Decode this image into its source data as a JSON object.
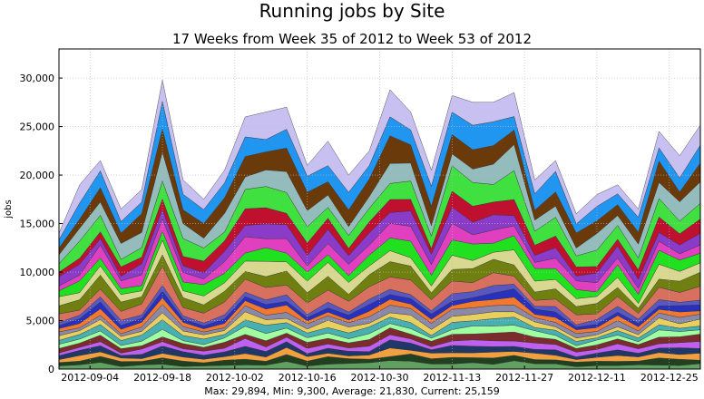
{
  "chart_data": {
    "type": "area",
    "stacked": true,
    "title": "Running jobs by Site",
    "subtitle": "17 Weeks from Week 35 of 2012 to Week 53 of 2012",
    "ylabel": "jobs",
    "xlabel": "",
    "ylim": [
      0,
      33000
    ],
    "xlim": [
      "2012-08-29",
      "2012-12-31"
    ],
    "yticks": [
      0,
      5000,
      10000,
      15000,
      20000,
      25000,
      30000
    ],
    "ytick_labels": [
      "0",
      "5,000",
      "10,000",
      "15,000",
      "20,000",
      "25,000",
      "30,000"
    ],
    "xticks": [
      "2012-09-04",
      "2012-09-18",
      "2012-10-02",
      "2012-10-16",
      "2012-10-30",
      "2012-11-13",
      "2012-11-27",
      "2012-12-11",
      "2012-12-25"
    ],
    "grid": true,
    "legend": "none",
    "footer": "Max: 29,894, Min: 9,300, Average: 21,830, Current: 25,159",
    "total_series": {
      "dates": [
        "2012-08-29",
        "2012-09-02",
        "2012-09-06",
        "2012-09-10",
        "2012-09-14",
        "2012-09-18",
        "2012-09-22",
        "2012-09-26",
        "2012-09-30",
        "2012-10-04",
        "2012-10-08",
        "2012-10-12",
        "2012-10-16",
        "2012-10-20",
        "2012-10-24",
        "2012-10-28",
        "2012-11-01",
        "2012-11-05",
        "2012-11-09",
        "2012-11-13",
        "2012-11-17",
        "2012-11-21",
        "2012-11-25",
        "2012-11-29",
        "2012-12-03",
        "2012-12-07",
        "2012-12-11",
        "2012-12-15",
        "2012-12-19",
        "2012-12-23",
        "2012-12-27",
        "2012-12-31"
      ],
      "values": [
        14000,
        19000,
        21500,
        16500,
        18500,
        29800,
        19500,
        17500,
        20500,
        26000,
        26500,
        27000,
        21000,
        23500,
        20000,
        22500,
        28800,
        26500,
        20500,
        28200,
        27500,
        27500,
        28500,
        19500,
        21500,
        16000,
        18000,
        19000,
        16500,
        24500,
        22000,
        25159
      ]
    },
    "series_colors": [
      "#c8c0f0",
      "#2196f0",
      "#6b3a0a",
      "#94bcbc",
      "#40e040",
      "#c01030",
      "#8a3cc8",
      "#e040c0",
      "#20e020",
      "#d8d890",
      "#708010",
      "#d87060",
      "#5858c0",
      "#2830c0",
      "#f07830",
      "#8c88a8",
      "#e8d060",
      "#48b0b0",
      "#a0ffa0",
      "#7c2c2c",
      "#c060f0",
      "#203868",
      "#f0a040",
      "#204020",
      "#60a060"
    ]
  }
}
